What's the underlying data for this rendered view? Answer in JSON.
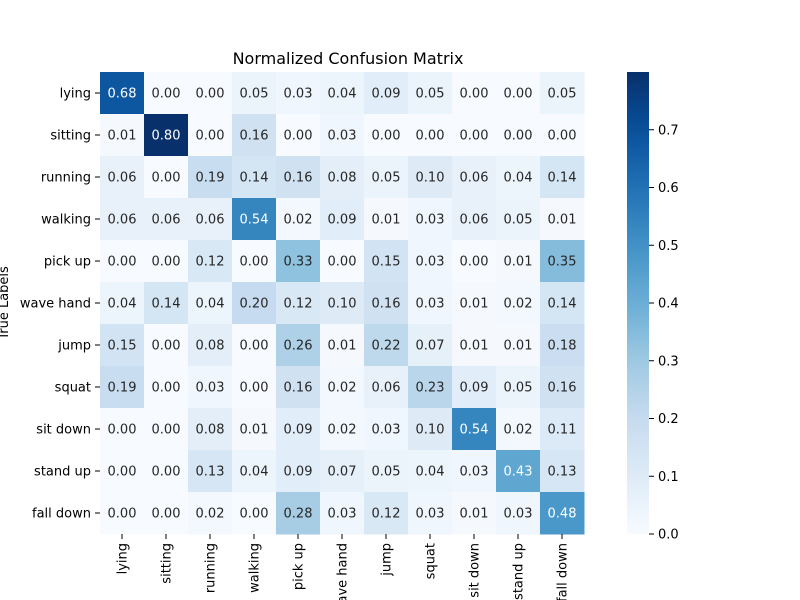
{
  "chart_data": {
    "type": "heatmap",
    "title": "Normalized Confusion Matrix",
    "ylabel": "True Labels",
    "xlabel": "",
    "row_labels": [
      "lying",
      "sitting",
      "running",
      "walking",
      "pick up",
      "wave hand",
      "jump",
      "squat",
      "sit down",
      "stand up",
      "fall down"
    ],
    "col_labels": [
      "lying",
      "sitting",
      "running",
      "walking",
      "pick up",
      "wave hand",
      "jump",
      "squat",
      "sit down",
      "stand up",
      "fall down"
    ],
    "values": [
      [
        0.68,
        0.0,
        0.0,
        0.05,
        0.03,
        0.04,
        0.09,
        0.05,
        0.0,
        0.0,
        0.05
      ],
      [
        0.01,
        0.8,
        0.0,
        0.16,
        0.0,
        0.03,
        0.0,
        0.0,
        0.0,
        0.0,
        0.0
      ],
      [
        0.06,
        0.0,
        0.19,
        0.14,
        0.16,
        0.08,
        0.05,
        0.1,
        0.06,
        0.04,
        0.14
      ],
      [
        0.06,
        0.06,
        0.06,
        0.54,
        0.02,
        0.09,
        0.01,
        0.03,
        0.06,
        0.05,
        0.01
      ],
      [
        0.0,
        0.0,
        0.12,
        0.0,
        0.33,
        0.0,
        0.15,
        0.03,
        0.0,
        0.01,
        0.35
      ],
      [
        0.04,
        0.14,
        0.04,
        0.2,
        0.12,
        0.1,
        0.16,
        0.03,
        0.01,
        0.02,
        0.14
      ],
      [
        0.15,
        0.0,
        0.08,
        0.0,
        0.26,
        0.01,
        0.22,
        0.07,
        0.01,
        0.01,
        0.18
      ],
      [
        0.19,
        0.0,
        0.03,
        0.0,
        0.16,
        0.02,
        0.06,
        0.23,
        0.09,
        0.05,
        0.16
      ],
      [
        0.0,
        0.0,
        0.08,
        0.01,
        0.09,
        0.02,
        0.03,
        0.1,
        0.54,
        0.02,
        0.11
      ],
      [
        0.0,
        0.0,
        0.13,
        0.04,
        0.09,
        0.07,
        0.05,
        0.04,
        0.03,
        0.43,
        0.13
      ],
      [
        0.0,
        0.0,
        0.02,
        0.0,
        0.28,
        0.03,
        0.12,
        0.03,
        0.01,
        0.03,
        0.48
      ]
    ],
    "value_format": "2 decimals",
    "colormap": "Blues",
    "colorbar": {
      "range": [
        0.0,
        0.8
      ],
      "ticks": [
        "0.0",
        "0.1",
        "0.2",
        "0.3",
        "0.4",
        "0.5",
        "0.6",
        "0.7"
      ]
    },
    "grid": false
  }
}
